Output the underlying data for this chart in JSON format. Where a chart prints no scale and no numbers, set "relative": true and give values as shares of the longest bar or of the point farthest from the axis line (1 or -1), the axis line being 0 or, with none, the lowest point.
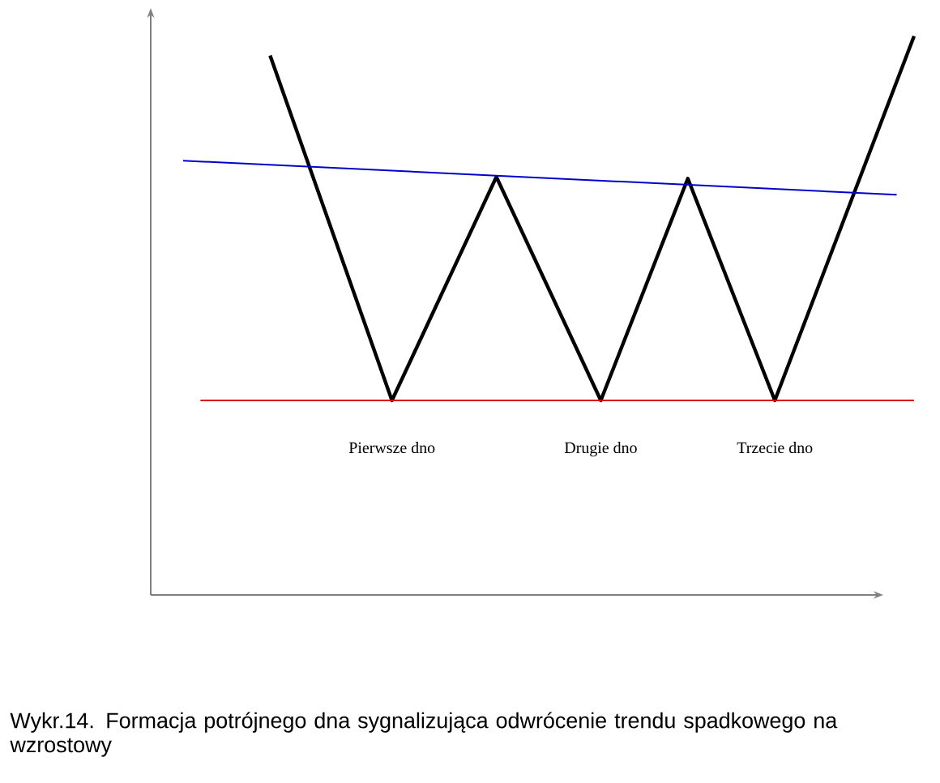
{
  "chart_data": {
    "type": "line",
    "relative": true,
    "categories": [
      null,
      null,
      null,
      null,
      null,
      null,
      null,
      null,
      null,
      null,
      null,
      null,
      null,
      null,
      null,
      null,
      null,
      null,
      null,
      null,
      null,
      null,
      null,
      null,
      null,
      null,
      null,
      null,
      null,
      null,
      null,
      null,
      null,
      null,
      null,
      null,
      null,
      null,
      null,
      null,
      null,
      null,
      null
    ],
    "series": [
      {
        "color": "#000000",
        "values": [
          null,
          null,
          null,
          null,
          null,
          0.965,
          null,
          null,
          null,
          null,
          null,
          null,
          0.348,
          null,
          null,
          null,
          null,
          null,
          0.748,
          null,
          null,
          null,
          null,
          null,
          0.348,
          null,
          null,
          null,
          null,
          0.745,
          null,
          null,
          null,
          null,
          0.348,
          null,
          null,
          null,
          null,
          null,
          null,
          null,
          1.0
        ]
      },
      {
        "color": "#0000cc",
        "values": [
          0.777,
          null,
          null,
          null,
          null,
          null,
          null,
          null,
          null,
          null,
          null,
          null,
          null,
          null,
          null,
          null,
          null,
          null,
          null,
          null,
          null,
          null,
          null,
          null,
          null,
          null,
          null,
          null,
          null,
          null,
          null,
          null,
          null,
          null,
          null,
          null,
          null,
          null,
          null,
          null,
          null,
          0.716,
          null
        ]
      },
      {
        "color": "#dd0000",
        "values": [
          null,
          0.348,
          null,
          null,
          null,
          null,
          null,
          null,
          null,
          null,
          null,
          null,
          null,
          null,
          null,
          null,
          null,
          null,
          null,
          null,
          null,
          null,
          null,
          null,
          null,
          null,
          null,
          null,
          null,
          null,
          null,
          null,
          null,
          null,
          null,
          null,
          null,
          null,
          null,
          null,
          null,
          null,
          0.348
        ]
      }
    ],
    "annotations": [
      "Pierwsze dno",
      "Drugie dno",
      "Trzecie dno",
      "Wykr.14. Formacja potrójnego dna sygnalizująca odwrócenie trendu spadkowego na wzrostowy"
    ]
  }
}
